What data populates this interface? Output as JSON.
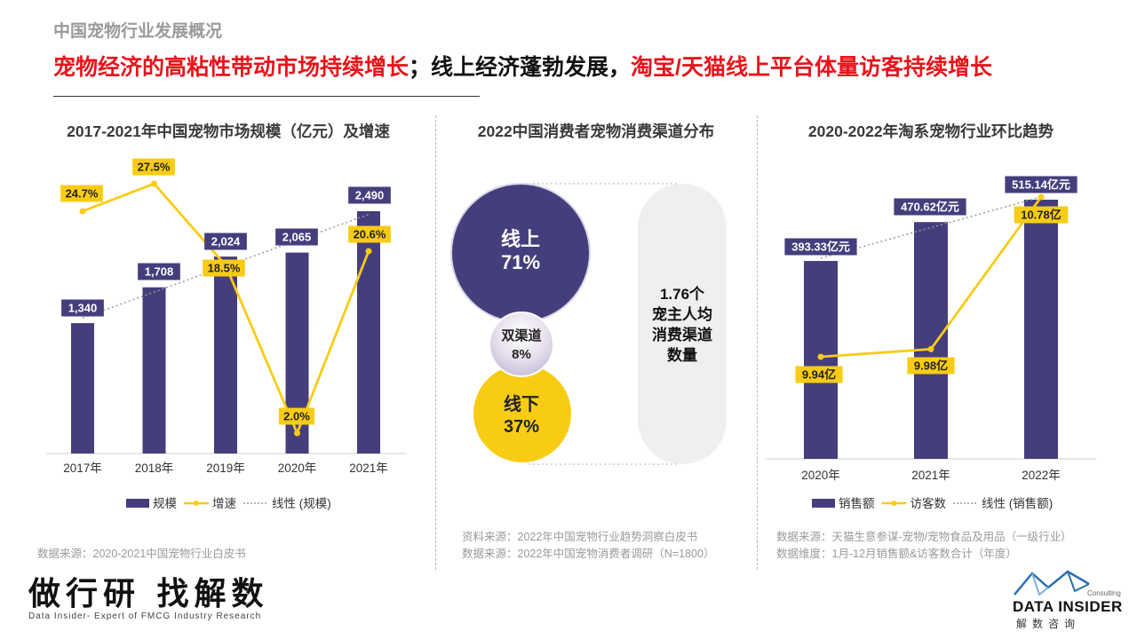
{
  "header": {
    "section_label": "中国宠物行业发展概况",
    "headline_part1": "宠物经济的高粘性带动市场持续增长",
    "headline_part2": "；线上经济蓬勃发展，",
    "headline_part3": "淘宝/天猫线上平台体量访客持续增长"
  },
  "colors": {
    "navy": "#453e7c",
    "yellow": "#f8cc15",
    "red": "#e8141c",
    "light_gray": "#f0f0f0",
    "gray_text": "#9a9a9a"
  },
  "chart_data": [
    {
      "type": "bar",
      "title": "2017-2021年中国宠物市场规模（亿元）及增速",
      "categories": [
        "2017年",
        "2018年",
        "2019年",
        "2020年",
        "2021年"
      ],
      "series": [
        {
          "name": "规模",
          "type": "bar",
          "values": [
            1340,
            1708,
            2024,
            2065,
            2490
          ],
          "labels": [
            "1,340",
            "1,708",
            "2,024",
            "2,065",
            "2,490"
          ]
        },
        {
          "name": "增速",
          "type": "line",
          "values": [
            24.7,
            27.5,
            18.5,
            2.0,
            20.6
          ],
          "labels": [
            "24.7%",
            "27.5%",
            "18.5%",
            "2.0%",
            "20.6%"
          ]
        },
        {
          "name": "线性 (规模)",
          "type": "trendline"
        }
      ],
      "ylim": [
        0,
        2900
      ],
      "y2lim": [
        0,
        32
      ],
      "legend": "bottom",
      "grid": false,
      "source": "数据来源：2020-2021中国宠物行业白皮书"
    },
    {
      "type": "bubble",
      "title": "2022中国消费者宠物消费渠道分布",
      "items": [
        {
          "name": "线上",
          "value": "71%"
        },
        {
          "name": "双渠道",
          "value": "8%"
        },
        {
          "name": "线下",
          "value": "37%"
        }
      ],
      "callout": [
        "1.76个",
        "宠主人均",
        "消费渠道",
        "数量"
      ],
      "source_lines": [
        "资料来源：2022年中国宠物行业趋势洞察白皮书",
        "数据来源：2022年中国宠物消费者调研（N=1800）"
      ]
    },
    {
      "type": "bar",
      "title": "2020-2022年淘系宠物行业环比趋势",
      "categories": [
        "2020年",
        "2021年",
        "2022年"
      ],
      "series": [
        {
          "name": "销售额",
          "type": "bar",
          "values": [
            393.33,
            470.62,
            515.14
          ],
          "labels": [
            "393.33亿元",
            "470.62亿元",
            "515.14亿元"
          ]
        },
        {
          "name": "访客数",
          "type": "line",
          "values": [
            9.94,
            9.98,
            10.78
          ],
          "labels": [
            "9.94亿",
            "9.98亿",
            "10.78亿"
          ]
        },
        {
          "name": "线性 (销售额)",
          "type": "trendline"
        }
      ],
      "ylim": [
        0,
        560
      ],
      "y2lim": [
        9.6,
        10.86
      ],
      "legend": "bottom",
      "grid": false,
      "source_lines": [
        "数据来源：天猫生意参谋-宠物/宠物食品及用品（一级行业）",
        "数据维度：1月-12月销售额&访客数合计（年度）"
      ]
    }
  ],
  "footer": {
    "slogan": "做行研 找解数",
    "slogan_sub": "Data Insider- Expert of FMCG Industry Research",
    "logo_consulting": "Consulting",
    "logo_name": "DATA INSIDER",
    "logo_cn": "解数咨询"
  }
}
